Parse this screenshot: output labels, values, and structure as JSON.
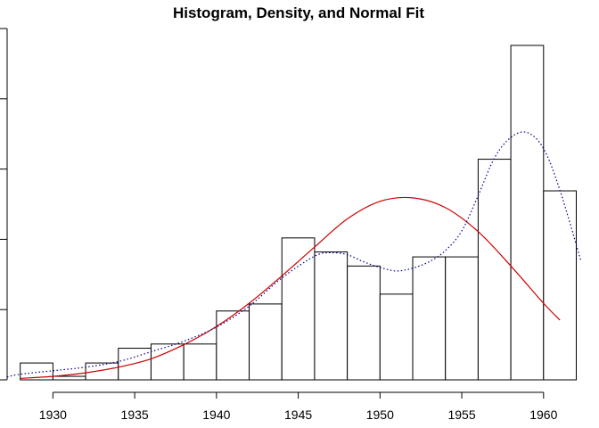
{
  "chart_data": {
    "type": "histogram",
    "title": "Histogram, Density, and Normal Fit",
    "xlabel": "",
    "ylabel": "",
    "x_ticks": [
      1930,
      1935,
      1940,
      1945,
      1950,
      1955,
      1960
    ],
    "y_tick_count": 6,
    "y_tick_labels_shown": false,
    "xlim": [
      1927.2,
      1962.3
    ],
    "ylim": [
      0,
      0.05
    ],
    "bins": [
      {
        "start": 1928,
        "end": 1930,
        "height": 0.0024
      },
      {
        "start": 1930,
        "end": 1932,
        "height": 0.0005
      },
      {
        "start": 1932,
        "end": 1934,
        "height": 0.0024
      },
      {
        "start": 1934,
        "end": 1936,
        "height": 0.0045
      },
      {
        "start": 1936,
        "end": 1938,
        "height": 0.0051
      },
      {
        "start": 1938,
        "end": 1940,
        "height": 0.0051
      },
      {
        "start": 1940,
        "end": 1942,
        "height": 0.0098
      },
      {
        "start": 1942,
        "end": 1944,
        "height": 0.0108
      },
      {
        "start": 1944,
        "end": 1946,
        "height": 0.0202
      },
      {
        "start": 1946,
        "end": 1948,
        "height": 0.0182
      },
      {
        "start": 1948,
        "end": 1950,
        "height": 0.0162
      },
      {
        "start": 1950,
        "end": 1952,
        "height": 0.0122
      },
      {
        "start": 1952,
        "end": 1954,
        "height": 0.0175
      },
      {
        "start": 1954,
        "end": 1956,
        "height": 0.0175
      },
      {
        "start": 1956,
        "end": 1958,
        "height": 0.0314
      },
      {
        "start": 1958,
        "end": 1960,
        "height": 0.0476
      },
      {
        "start": 1960,
        "end": 1962,
        "height": 0.0269
      }
    ],
    "series": [
      {
        "kind": "normal-fit",
        "color": "#cc0000",
        "style": "solid",
        "x": [
          1928,
          1930,
          1932,
          1934,
          1936,
          1938,
          1940,
          1942,
          1944,
          1946,
          1948,
          1950,
          1952,
          1954,
          1956,
          1958,
          1960,
          1961
        ],
        "y": [
          0.0002,
          0.0005,
          0.001,
          0.0018,
          0.003,
          0.005,
          0.0076,
          0.0109,
          0.0148,
          0.0189,
          0.0229,
          0.0254,
          0.0259,
          0.0245,
          0.0211,
          0.0162,
          0.0109,
          0.0085
        ]
      },
      {
        "kind": "kernel-density",
        "color": "#00008b",
        "style": "dotted",
        "x": [
          1927.2,
          1928,
          1930,
          1932,
          1934,
          1936,
          1938,
          1940,
          1942,
          1944,
          1946,
          1947,
          1948,
          1949,
          1950,
          1951,
          1952,
          1953,
          1954,
          1955,
          1956,
          1957,
          1958,
          1959,
          1960,
          1961,
          1962.3
        ],
        "y": [
          0.0004,
          0.0008,
          0.0013,
          0.0018,
          0.0026,
          0.004,
          0.0055,
          0.0075,
          0.0105,
          0.0145,
          0.0176,
          0.0181,
          0.0178,
          0.0168,
          0.016,
          0.0155,
          0.0159,
          0.0168,
          0.0184,
          0.0212,
          0.0262,
          0.0316,
          0.0345,
          0.0352,
          0.0329,
          0.027,
          0.0168
        ]
      }
    ]
  }
}
